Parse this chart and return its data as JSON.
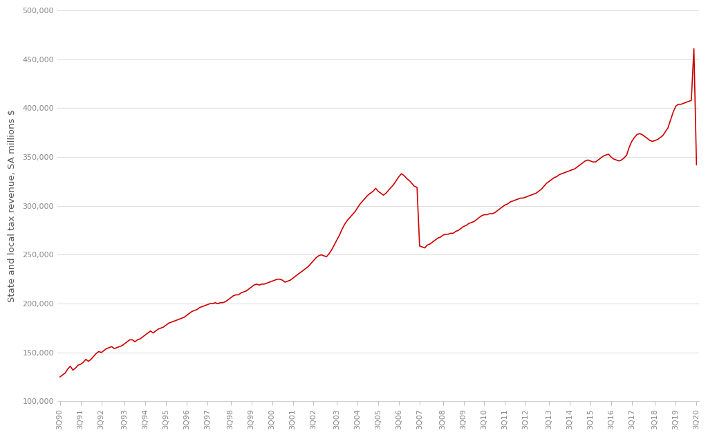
{
  "line_color": "#cc0000",
  "background_color": "#ffffff",
  "ylabel": "State and local tax revenue, SA millions $",
  "ylabel_fontsize": 9.5,
  "ylabel_color": "#555555",
  "tick_color": "#888888",
  "tick_fontsize": 8,
  "grid_color": "#dddddd",
  "ylim": [
    100000,
    500000
  ],
  "yticks": [
    100000,
    150000,
    200000,
    250000,
    300000,
    350000,
    400000,
    450000,
    500000
  ],
  "x_labels": [
    "3Q90",
    "3Q91",
    "3Q92",
    "3Q93",
    "3Q94",
    "3Q95",
    "3Q96",
    "3Q97",
    "3Q98",
    "3Q99",
    "3Q00",
    "3Q01",
    "3Q02",
    "3Q03",
    "3Q04",
    "3Q05",
    "3Q06",
    "3Q07",
    "3Q08",
    "3Q09",
    "3Q10",
    "3Q11",
    "3Q12",
    "3Q13",
    "3Q14",
    "3Q15",
    "3Q16",
    "3Q17",
    "3Q18",
    "3Q19",
    "3Q20"
  ],
  "values": [
    125000,
    127000,
    129000,
    133000,
    136000,
    132000,
    134000,
    137000,
    138000,
    140000,
    143000,
    141000,
    143000,
    146000,
    149000,
    151000,
    150000,
    152000,
    154000,
    155000,
    156000,
    154000,
    155000,
    156000,
    157000,
    159000,
    161000,
    163000,
    163000,
    161000,
    163000,
    164000,
    166000,
    168000,
    170000,
    172000,
    170000,
    172000,
    174000,
    175000,
    176000,
    178000,
    180000,
    181000,
    182000,
    183000,
    184000,
    185000,
    186000,
    188000,
    190000,
    192000,
    193000,
    194000,
    196000,
    197000,
    198000,
    199000,
    200000,
    200000,
    201000,
    200000,
    201000,
    201000,
    202000,
    204000,
    206000,
    208000,
    209000,
    209000,
    211000,
    212000,
    213000,
    215000,
    217000,
    219000,
    220000,
    219000,
    220000,
    220000,
    221000,
    222000,
    223000,
    224000,
    225000,
    225000,
    224000,
    222000,
    223000,
    224000,
    226000,
    228000,
    230000,
    232000,
    234000,
    236000,
    238000,
    241000,
    244000,
    247000,
    249000,
    250000,
    249000,
    248000,
    251000,
    255000,
    260000,
    265000,
    270000,
    276000,
    281000,
    285000,
    288000,
    291000,
    294000,
    298000,
    302000,
    305000,
    308000,
    311000,
    313000,
    315000,
    318000,
    315000,
    313000,
    311000,
    313000,
    316000,
    319000,
    322000,
    326000,
    330000,
    333000,
    331000,
    328000,
    326000,
    323000,
    320000,
    319000,
    259000,
    258000,
    257000,
    260000,
    261000,
    263000,
    265000,
    267000,
    268000,
    270000,
    271000,
    271000,
    272000,
    272000,
    274000,
    275000,
    277000,
    279000,
    280000,
    282000,
    283000,
    284000,
    286000,
    288000,
    290000,
    291000,
    291000,
    292000,
    292000,
    293000,
    295000,
    297000,
    299000,
    301000,
    302000,
    304000,
    305000,
    306000,
    307000,
    308000,
    308000,
    309000,
    310000,
    311000,
    312000,
    313000,
    315000,
    317000,
    320000,
    323000,
    325000,
    327000,
    329000,
    330000,
    332000,
    333000,
    334000,
    335000,
    336000,
    337000,
    338000,
    340000,
    342000,
    344000,
    346000,
    347000,
    346000,
    345000,
    345000,
    347000,
    349000,
    351000,
    352000,
    353000,
    350000,
    348000,
    347000,
    346000,
    347000,
    349000,
    352000,
    360000,
    366000,
    370000,
    373000,
    374000,
    373000,
    371000,
    369000,
    367000,
    366000,
    367000,
    368000,
    370000,
    372000,
    376000,
    380000,
    388000,
    396000,
    402000,
    404000,
    404000,
    405000,
    406000,
    407000,
    408000,
    461000,
    342000
  ]
}
